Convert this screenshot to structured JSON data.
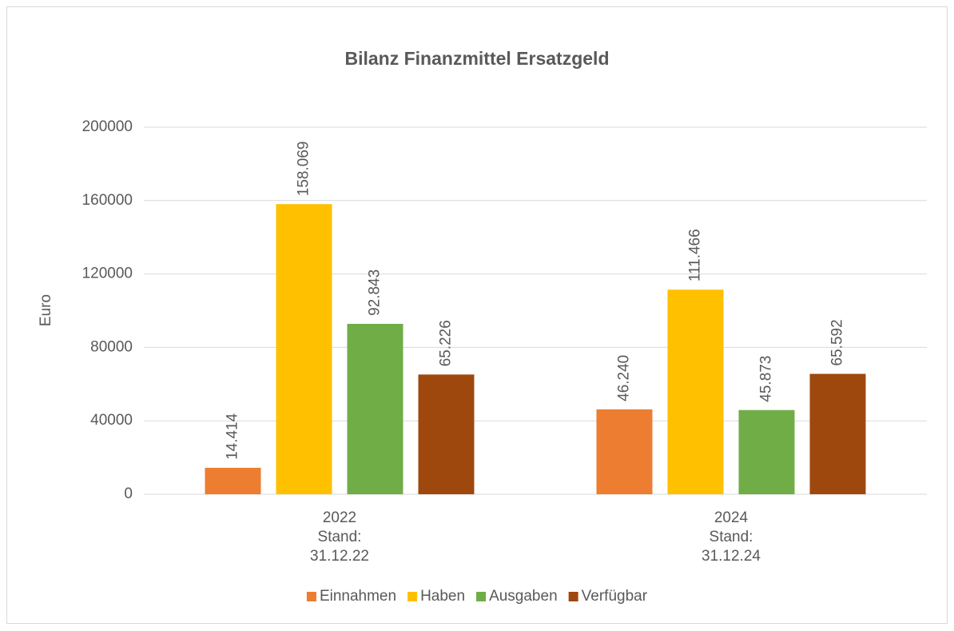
{
  "chart_data": {
    "type": "bar",
    "title": "Bilanz Finanzmittel Ersatzgeld",
    "y_label": "Euro",
    "categories": [
      [
        "2022",
        "Stand:",
        "31.12.22"
      ],
      [
        "2024",
        "Stand:",
        "31.12.24"
      ]
    ],
    "series": [
      {
        "name": "Einnahmen",
        "color": "#ed7d31",
        "values": [
          14414,
          46240
        ],
        "value_labels": [
          "14.414",
          "46.240"
        ]
      },
      {
        "name": "Haben",
        "color": "#ffc000",
        "values": [
          158069,
          111466
        ],
        "value_labels": [
          "158.069",
          "111.466"
        ]
      },
      {
        "name": "Ausgaben",
        "color": "#70ad47",
        "values": [
          92843,
          45873
        ],
        "value_labels": [
          "92.843",
          "45.873"
        ]
      },
      {
        "name": "Verfügbar",
        "color": "#9e480e",
        "values": [
          65226,
          65592
        ],
        "value_labels": [
          "65.226",
          "65.592"
        ]
      }
    ],
    "ylim": [
      0,
      200000
    ],
    "yticks": [
      0,
      40000,
      80000,
      120000,
      160000,
      200000
    ],
    "grid": true,
    "legend": "bottom"
  }
}
